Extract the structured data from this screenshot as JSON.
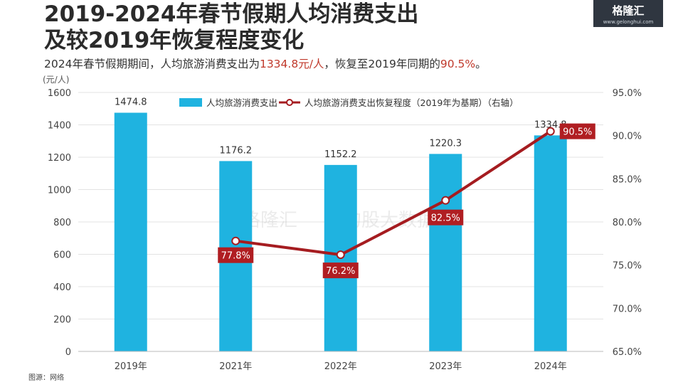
{
  "title_line1": "2019-2024年春节假期人均消费支出",
  "title_line2": "及较2019年恢复程度变化",
  "subtitle": {
    "part1": "2024年春节假期期间，人均旅游消费支出为",
    "highlight1": "1334.8元/人",
    "part2": "，恢复至2019年同期的",
    "highlight2": "90.5%",
    "part3": "。"
  },
  "logo": {
    "text": "格隆汇",
    "url": "www.gelonghui.com"
  },
  "unit_label": "(元/人)",
  "source_label": "图源：网络",
  "watermark": {
    "text1": "格隆汇",
    "text2": "勾股大数据",
    "url": "www.gogudata.com"
  },
  "colors": {
    "bar": "#1fb3e0",
    "line": "#a51c20",
    "label_bg": "#b01e22"
  },
  "chart_data": {
    "type": "bar",
    "categories": [
      "2019年",
      "2021年",
      "2022年",
      "2023年",
      "2024年"
    ],
    "series": [
      {
        "name": "人均旅游消费支出",
        "type": "bar",
        "axis": "left",
        "values": [
          1474.8,
          1176.2,
          1152.2,
          1220.3,
          1334.8
        ],
        "labels": [
          "1474.8",
          "1176.2",
          "1152.2",
          "1220.3",
          "1334.8"
        ]
      },
      {
        "name": "人均旅游消费支出恢复程度（2019年为基期）（右轴）",
        "type": "line",
        "axis": "right",
        "values": [
          null,
          77.8,
          76.2,
          82.5,
          90.5
        ],
        "labels": [
          "",
          "77.8%",
          "76.2%",
          "82.5%",
          "90.5%"
        ]
      }
    ],
    "ylim_left": [
      0,
      1600
    ],
    "yticks_left": [
      "0",
      "200",
      "400",
      "600",
      "800",
      "1000",
      "1200",
      "1400",
      "1600"
    ],
    "ylim_right": [
      65,
      95
    ],
    "yticks_right": [
      "65.0%",
      "70.0%",
      "75.0%",
      "80.0%",
      "85.0%",
      "90.0%",
      "95.0%"
    ],
    "grid": true,
    "legend": "top"
  }
}
